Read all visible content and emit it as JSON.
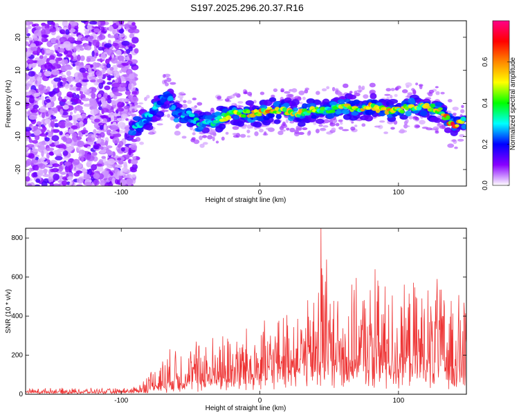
{
  "chart_data": [
    {
      "type": "heatmap",
      "title": "S197.2025.296.20.37.R16",
      "xlabel": "Height of straight line (km)",
      "ylabel": "Frequency (Hz)",
      "xlim": [
        -169,
        149
      ],
      "ylim": [
        -25,
        25
      ],
      "xticks": [
        -100,
        0,
        100
      ],
      "xtick_labels": [
        "-100",
        "0",
        "100"
      ],
      "yticks": [
        -20,
        -10,
        0,
        10,
        20
      ],
      "ytick_labels": [
        "-20",
        "-10",
        "0",
        "10",
        "20"
      ],
      "noise_region_x": [
        -169,
        -93
      ],
      "ridge": {
        "x": [
          -92,
          -85,
          -78,
          -72,
          -66,
          -60,
          -52,
          -45,
          -38,
          -30,
          -20,
          -10,
          0,
          10,
          20,
          30,
          40,
          50,
          60,
          70,
          80,
          90,
          100,
          110,
          120,
          130,
          140,
          148
        ],
        "freq": [
          -7,
          -6,
          -3,
          0,
          3,
          -4,
          -3,
          -6,
          -6,
          -5,
          -3,
          -3,
          -3,
          -2,
          -2.5,
          -3,
          -2,
          -2,
          -1,
          -1.5,
          -1,
          -2,
          -2,
          -1,
          -1,
          -2,
          -7,
          -5
        ],
        "amplitude": [
          0.3,
          0.35,
          0.3,
          0.35,
          0.25,
          0.3,
          0.3,
          0.35,
          0.4,
          0.45,
          0.55,
          0.6,
          0.6,
          0.65,
          0.6,
          0.55,
          0.5,
          0.45,
          0.6,
          0.55,
          0.6,
          0.7,
          0.55,
          0.5,
          0.55,
          0.55,
          0.75,
          0.45
        ]
      },
      "colorbar": {
        "label": "Normalized spectral amplitude",
        "range": [
          0.0,
          0.8
        ],
        "ticks": [
          0.0,
          0.2,
          0.4,
          0.6
        ],
        "tick_labels": [
          "0.0",
          "0.2",
          "0.4",
          "0.6"
        ],
        "colors": [
          "#ffffff",
          "#8800ff",
          "#0000ff",
          "#00ffff",
          "#00ff00",
          "#ffff00",
          "#ff8800",
          "#ff0000",
          "#ff0088"
        ]
      }
    },
    {
      "type": "line",
      "xlabel": "Height of straight line (km)",
      "ylabel": "SNR (10 * v/v)",
      "xlim": [
        -169,
        149
      ],
      "ylim": [
        0,
        850
      ],
      "xticks": [
        -100,
        0,
        100
      ],
      "xtick_labels": [
        "-100",
        "0",
        "100"
      ],
      "yticks": [
        0,
        200,
        400,
        600,
        800
      ],
      "ytick_labels": [
        "0",
        "200",
        "400",
        "600",
        "800"
      ],
      "series": [
        {
          "name": "SNR",
          "color": "#ee3333",
          "envelope": {
            "x": [
              -169,
              -100,
              -90,
              -85,
              -80,
              -70,
              -60,
              -50,
              -40,
              -30,
              -20,
              -10,
              0,
              10,
              20,
              30,
              40,
              44,
              50,
              60,
              70,
              80,
              90,
              100,
              110,
              120,
              130,
              140,
              149
            ],
            "base": [
              8,
              8,
              10,
              15,
              20,
              30,
              40,
              45,
              50,
              60,
              60,
              80,
              90,
              100,
              100,
              110,
              110,
              110,
              110,
              110,
              110,
              110,
              110,
              110,
              110,
              110,
              110,
              110,
              110
            ],
            "peak": [
              30,
              30,
              40,
              70,
              120,
              200,
              250,
              260,
              300,
              300,
              330,
              330,
              340,
              370,
              420,
              450,
              480,
              850,
              540,
              520,
              560,
              560,
              600,
              480,
              580,
              550,
              540,
              520,
              470
            ]
          },
          "notable_peaks": [
            {
              "x": 44,
              "y": 850
            },
            {
              "x": 48,
              "y": 690
            },
            {
              "x": 83,
              "y": 640
            },
            {
              "x": 128,
              "y": 590
            }
          ]
        }
      ]
    }
  ]
}
